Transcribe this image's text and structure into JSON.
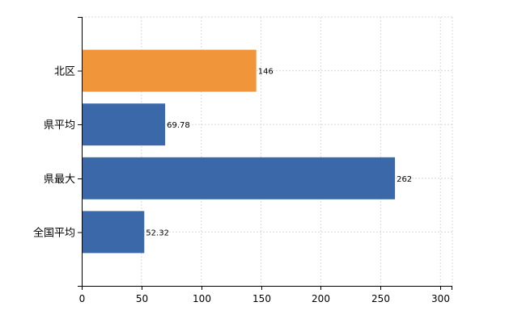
{
  "chart_data": {
    "type": "bar",
    "orientation": "horizontal",
    "categories": [
      "北区",
      "県平均",
      "県最大",
      "全国平均"
    ],
    "values": [
      146,
      69.78,
      262,
      52.32
    ],
    "data_labels": [
      "146",
      "69.78",
      "262",
      "52.32"
    ],
    "bar_colors": [
      "#f0953a",
      "#3a68a8",
      "#3a68a8",
      "#3a68a8"
    ],
    "xlim": [
      0,
      310
    ],
    "x_ticks": [
      0,
      50,
      100,
      150,
      200,
      250,
      300
    ],
    "x_tick_labels": [
      "0",
      "50",
      "100",
      "150",
      "200",
      "250",
      "300"
    ],
    "grid": true,
    "legend": false
  }
}
